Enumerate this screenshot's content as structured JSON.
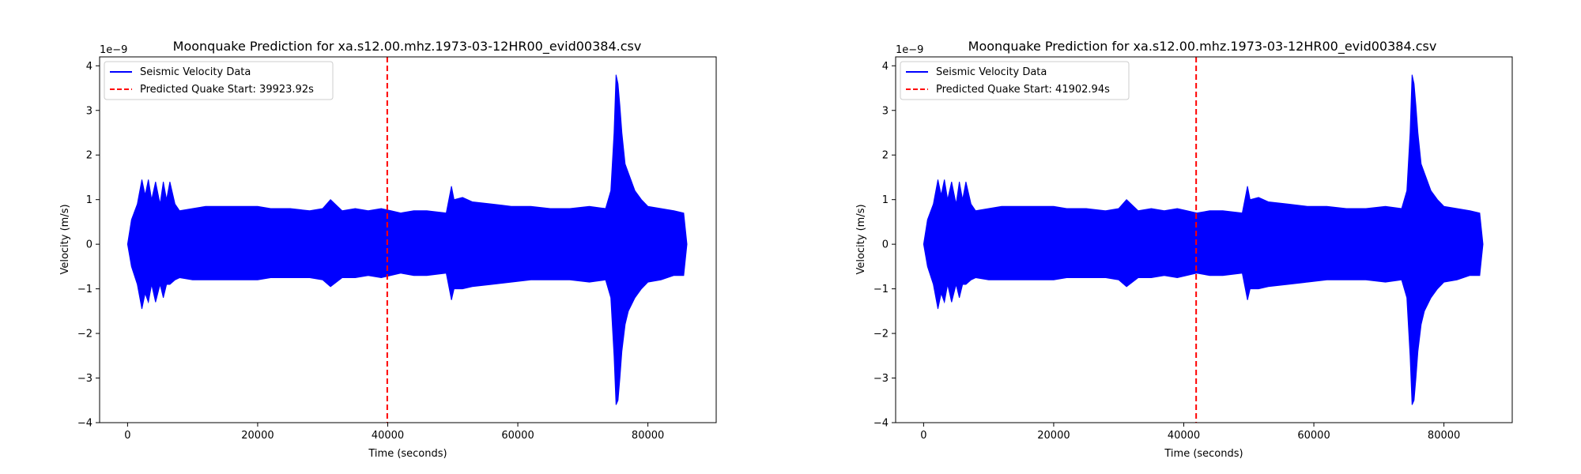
{
  "chart_data": [
    {
      "type": "line",
      "title": "Moonquake Prediction for xa.s12.00.mhz.1973-03-12HR00_evid00384.csv",
      "xlabel": "Time (seconds)",
      "ylabel": "Velocity (m/s)",
      "y_offset_label": "1e−9",
      "xlim": [
        -4300,
        90500
      ],
      "ylim": [
        -4,
        4.2
      ],
      "x_ticks": [
        0,
        20000,
        40000,
        60000,
        80000
      ],
      "x_tick_labels": [
        "0",
        "20000",
        "40000",
        "60000",
        "80000"
      ],
      "y_ticks": [
        -4,
        -3,
        -2,
        -1,
        0,
        1,
        2,
        3,
        4
      ],
      "y_tick_labels": [
        "−4",
        "−3",
        "−2",
        "−1",
        "0",
        "1",
        "2",
        "3",
        "4"
      ],
      "grid": false,
      "legend_position": "top-left",
      "series": [
        {
          "name": "Seismic Velocity Data",
          "color": "#0000ff",
          "style": "solid",
          "envelope": {
            "x": [
              0,
              600,
              1500,
              2200,
              2700,
              3200,
              3700,
              4300,
              5000,
              5500,
              6000,
              6500,
              7300,
              8000,
              10000,
              12000,
              15000,
              18000,
              20000,
              22000,
              25000,
              28000,
              30000,
              31200,
              33000,
              35000,
              37000,
              39000,
              40500,
              42000,
              44000,
              46000,
              49000,
              49800,
              50200,
              51500,
              53000,
              56000,
              59000,
              62000,
              65000,
              68000,
              71000,
              73500,
              74300,
              74800,
              75100,
              75400,
              75700,
              76000,
              76500,
              77000,
              78000,
              79000,
              80000,
              82000,
              84000,
              85500,
              86000
            ],
            "upper": [
              0,
              0.55,
              0.9,
              1.45,
              1.1,
              1.45,
              1.0,
              1.4,
              0.9,
              1.4,
              1.0,
              1.4,
              0.9,
              0.75,
              0.8,
              0.85,
              0.85,
              0.85,
              0.85,
              0.8,
              0.8,
              0.75,
              0.8,
              1.0,
              0.75,
              0.8,
              0.75,
              0.8,
              0.75,
              0.7,
              0.75,
              0.75,
              0.7,
              1.3,
              1.0,
              1.05,
              0.95,
              0.9,
              0.85,
              0.85,
              0.8,
              0.8,
              0.85,
              0.8,
              1.2,
              2.5,
              3.8,
              3.6,
              3.1,
              2.5,
              1.8,
              1.6,
              1.2,
              1.0,
              0.85,
              0.8,
              0.75,
              0.7,
              0
            ],
            "lower": [
              0,
              -0.5,
              -0.9,
              -1.45,
              -1.1,
              -1.3,
              -0.9,
              -1.3,
              -0.9,
              -1.2,
              -0.9,
              -0.9,
              -0.8,
              -0.75,
              -0.8,
              -0.8,
              -0.8,
              -0.8,
              -0.8,
              -0.75,
              -0.75,
              -0.75,
              -0.8,
              -0.95,
              -0.75,
              -0.75,
              -0.7,
              -0.75,
              -0.7,
              -0.65,
              -0.7,
              -0.7,
              -0.65,
              -1.25,
              -1.0,
              -1.0,
              -0.95,
              -0.9,
              -0.85,
              -0.8,
              -0.8,
              -0.8,
              -0.85,
              -0.8,
              -1.2,
              -2.5,
              -3.6,
              -3.5,
              -3.0,
              -2.4,
              -1.8,
              -1.5,
              -1.2,
              -1.0,
              -0.85,
              -0.8,
              -0.7,
              -0.7,
              0
            ]
          }
        },
        {
          "name": "Predicted Quake Start: 39923.92s",
          "color": "#ff0000",
          "style": "dashed",
          "x": 39923.92
        }
      ]
    },
    {
      "type": "line",
      "title": "Moonquake Prediction for xa.s12.00.mhz.1973-03-12HR00_evid00384.csv",
      "xlabel": "Time (seconds)",
      "ylabel": "Velocity (m/s)",
      "y_offset_label": "1e−9",
      "xlim": [
        -4300,
        90500
      ],
      "ylim": [
        -4,
        4.2
      ],
      "x_ticks": [
        0,
        20000,
        40000,
        60000,
        80000
      ],
      "x_tick_labels": [
        "0",
        "20000",
        "40000",
        "60000",
        "80000"
      ],
      "y_ticks": [
        -4,
        -3,
        -2,
        -1,
        0,
        1,
        2,
        3,
        4
      ],
      "y_tick_labels": [
        "−4",
        "−3",
        "−2",
        "−1",
        "0",
        "1",
        "2",
        "3",
        "4"
      ],
      "grid": false,
      "legend_position": "top-left",
      "series": [
        {
          "name": "Seismic Velocity Data",
          "color": "#0000ff",
          "style": "solid",
          "envelope": {
            "x": [
              0,
              600,
              1500,
              2200,
              2700,
              3200,
              3700,
              4300,
              5000,
              5500,
              6000,
              6500,
              7300,
              8000,
              10000,
              12000,
              15000,
              18000,
              20000,
              22000,
              25000,
              28000,
              30000,
              31200,
              33000,
              35000,
              37000,
              39000,
              40500,
              42000,
              44000,
              46000,
              49000,
              49800,
              50200,
              51500,
              53000,
              56000,
              59000,
              62000,
              65000,
              68000,
              71000,
              73500,
              74300,
              74800,
              75100,
              75400,
              75700,
              76000,
              76500,
              77000,
              78000,
              79000,
              80000,
              82000,
              84000,
              85500,
              86000
            ],
            "upper": [
              0,
              0.55,
              0.9,
              1.45,
              1.1,
              1.45,
              1.0,
              1.4,
              0.9,
              1.4,
              1.0,
              1.4,
              0.9,
              0.75,
              0.8,
              0.85,
              0.85,
              0.85,
              0.85,
              0.8,
              0.8,
              0.75,
              0.8,
              1.0,
              0.75,
              0.8,
              0.75,
              0.8,
              0.75,
              0.7,
              0.75,
              0.75,
              0.7,
              1.3,
              1.0,
              1.05,
              0.95,
              0.9,
              0.85,
              0.85,
              0.8,
              0.8,
              0.85,
              0.8,
              1.2,
              2.5,
              3.8,
              3.6,
              3.1,
              2.5,
              1.8,
              1.6,
              1.2,
              1.0,
              0.85,
              0.8,
              0.75,
              0.7,
              0
            ],
            "lower": [
              0,
              -0.5,
              -0.9,
              -1.45,
              -1.1,
              -1.3,
              -0.9,
              -1.3,
              -0.9,
              -1.2,
              -0.9,
              -0.9,
              -0.8,
              -0.75,
              -0.8,
              -0.8,
              -0.8,
              -0.8,
              -0.8,
              -0.75,
              -0.75,
              -0.75,
              -0.8,
              -0.95,
              -0.75,
              -0.75,
              -0.7,
              -0.75,
              -0.7,
              -0.65,
              -0.7,
              -0.7,
              -0.65,
              -1.25,
              -1.0,
              -1.0,
              -0.95,
              -0.9,
              -0.85,
              -0.8,
              -0.8,
              -0.8,
              -0.85,
              -0.8,
              -1.2,
              -2.5,
              -3.6,
              -3.5,
              -3.0,
              -2.4,
              -1.8,
              -1.5,
              -1.2,
              -1.0,
              -0.85,
              -0.8,
              -0.7,
              -0.7,
              0
            ]
          }
        },
        {
          "name": "Predicted Quake Start: 41902.94s",
          "color": "#ff0000",
          "style": "dashed",
          "x": 41902.94
        }
      ]
    }
  ]
}
